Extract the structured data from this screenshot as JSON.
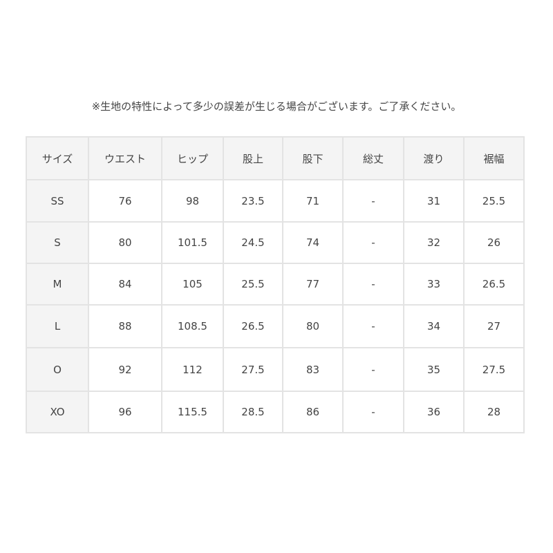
{
  "note": "※生地の特性によって多少の誤差が生じる場合がございます。ご了承ください。",
  "table": {
    "headers": [
      "サイズ",
      "ウエスト",
      "ヒップ",
      "股上",
      "股下",
      "総丈",
      "渡り",
      "裾幅"
    ],
    "rows": [
      [
        "SS",
        "76",
        "98",
        "23.5",
        "71",
        "-",
        "31",
        "25.5"
      ],
      [
        "S",
        "80",
        "101.5",
        "24.5",
        "74",
        "-",
        "32",
        "26"
      ],
      [
        "M",
        "84",
        "105",
        "25.5",
        "77",
        "-",
        "33",
        "26.5"
      ],
      [
        "L",
        "88",
        "108.5",
        "26.5",
        "80",
        "-",
        "34",
        "27"
      ],
      [
        "O",
        "92",
        "112",
        "27.5",
        "83",
        "-",
        "35",
        "27.5"
      ],
      [
        "XO",
        "96",
        "115.5",
        "28.5",
        "86",
        "-",
        "36",
        "28"
      ]
    ]
  }
}
